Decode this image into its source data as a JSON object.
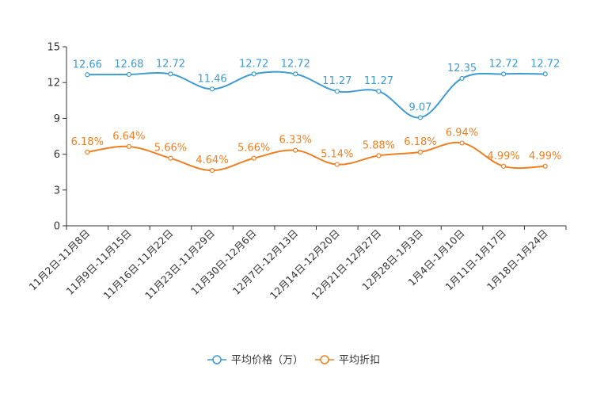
{
  "chart_data": {
    "type": "line",
    "title": "",
    "xlabel": "",
    "ylabel": "",
    "ylim": [
      0,
      15
    ],
    "yticks": [
      0,
      3,
      6,
      9,
      12,
      15
    ],
    "grid": false,
    "legend_position": "bottom-center",
    "categories": [
      "11月2日-11月8日",
      "11月9日-11月15日",
      "11月16日-11月22日",
      "11月23日-11月29日",
      "11月30日-12月6日",
      "12月7日-12月13日",
      "12月14日-12月20日",
      "12月21日-12月27日",
      "12月28日-1月3日",
      "1月4日-1月10日",
      "1月11日-1月17日",
      "1月18日-1月24日"
    ],
    "series": [
      {
        "name": "平均价格（万）",
        "color": "#3d9bd1",
        "values": [
          12.66,
          12.68,
          12.72,
          11.46,
          12.72,
          12.72,
          11.27,
          11.27,
          9.07,
          12.35,
          12.72,
          12.72
        ],
        "labels": [
          "12.66",
          "12.68",
          "12.72",
          "11.46",
          "12.72",
          "12.72",
          "11.27",
          "11.27",
          "9.07",
          "12.35",
          "12.72",
          "12.72"
        ]
      },
      {
        "name": "平均折扣",
        "color": "#f07f22",
        "values": [
          6.18,
          6.64,
          5.66,
          4.64,
          5.66,
          6.33,
          5.14,
          5.88,
          6.18,
          6.94,
          4.99,
          4.99
        ],
        "labels": [
          "6.18%",
          "6.64%",
          "5.66%",
          "4.64%",
          "5.66%",
          "6.33%",
          "5.14%",
          "5.88%",
          "6.18%",
          "6.94%",
          "4.99%",
          "4.99%"
        ]
      }
    ]
  }
}
